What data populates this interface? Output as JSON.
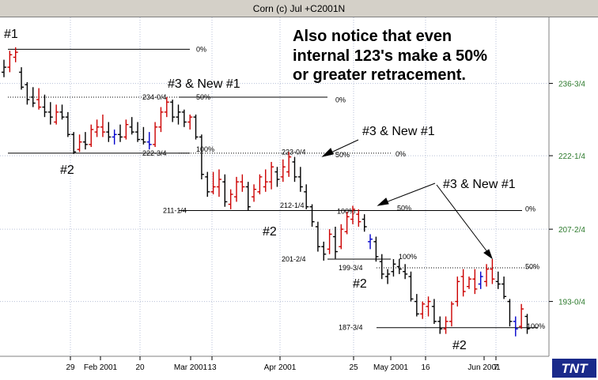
{
  "window": {
    "title": "Corn (c) Jul +C2001N"
  },
  "note": {
    "lines": [
      "Also notice that even",
      "internal 123's make a 50%",
      "or greater retracement."
    ]
  },
  "labels": {
    "p1": "#1",
    "p2a": "#2",
    "p2b": "#2",
    "p2c": "#2",
    "p2d": "#2",
    "p3a": "#3 & New #1",
    "p3b": "#3 & New #1",
    "p3c": "#3 & New #1"
  },
  "logo": "TNT",
  "chart_data": {
    "type": "bar",
    "subtype": "ohlc",
    "title": "Corn (c) Jul +C2001N",
    "x_tick_labels": [
      "29",
      "Feb 2001",
      "20",
      "Mar 2001",
      "13",
      "Apr 2001",
      "25",
      "May 2001",
      "16",
      "Jun 2001",
      "7"
    ],
    "y_tick_labels": [
      "236-3/4",
      "222-1/4",
      "207-2/4",
      "193-0/4"
    ],
    "ylim": [
      182.0,
      250.0
    ],
    "grid": true,
    "fib_levels": [
      {
        "text": "0%",
        "y": 243.6
      },
      {
        "text": "234-0/4",
        "y": 234.0
      },
      {
        "text": "50%",
        "y": 234.0
      },
      {
        "text": "0%",
        "y": 233.4
      },
      {
        "text": "222-3/4",
        "y": 222.75
      },
      {
        "text": "100%",
        "y": 223.5
      },
      {
        "text": "223-0/4",
        "y": 223.0
      },
      {
        "text": "50%",
        "y": 222.4
      },
      {
        "text": "0%",
        "y": 222.6
      },
      {
        "text": "211-1/4",
        "y": 211.25
      },
      {
        "text": "212-1/4",
        "y": 212.25
      },
      {
        "text": "100%",
        "y": 211.1
      },
      {
        "text": "50%",
        "y": 211.7
      },
      {
        "text": "0%",
        "y": 211.6
      },
      {
        "text": "201-2/4",
        "y": 201.5
      },
      {
        "text": "100%",
        "y": 202.0
      },
      {
        "text": "199-3/4",
        "y": 199.75
      },
      {
        "text": "50%",
        "y": 200.0
      },
      {
        "text": "187-3/4",
        "y": 187.75
      },
      {
        "text": "100%",
        "y": 188.0
      }
    ],
    "bars": [
      {
        "h": 241.5,
        "l": 238.0,
        "o": 239.0,
        "c": 240.0,
        "col": "black"
      },
      {
        "h": 243.3,
        "l": 239.0,
        "o": 240.0,
        "c": 242.5,
        "col": "red"
      },
      {
        "h": 244.0,
        "l": 241.0,
        "o": 242.0,
        "c": 243.0,
        "col": "red"
      },
      {
        "h": 240.0,
        "l": 235.5,
        "o": 239.0,
        "c": 236.0,
        "col": "black"
      },
      {
        "h": 237.0,
        "l": 232.5,
        "o": 236.5,
        "c": 233.5,
        "col": "black"
      },
      {
        "h": 236.0,
        "l": 232.0,
        "o": 234.0,
        "c": 232.8,
        "col": "black"
      },
      {
        "h": 235.8,
        "l": 231.5,
        "o": 233.5,
        "c": 232.0,
        "col": "red"
      },
      {
        "h": 234.5,
        "l": 230.0,
        "o": 232.0,
        "c": 231.0,
        "col": "black"
      },
      {
        "h": 233.0,
        "l": 228.5,
        "o": 231.0,
        "c": 230.0,
        "col": "black"
      },
      {
        "h": 232.5,
        "l": 228.5,
        "o": 229.0,
        "c": 231.0,
        "col": "red"
      },
      {
        "h": 232.5,
        "l": 229.5,
        "o": 231.0,
        "c": 230.0,
        "col": "black"
      },
      {
        "h": 231.0,
        "l": 226.0,
        "o": 230.0,
        "c": 226.5,
        "col": "black"
      },
      {
        "h": 227.0,
        "l": 222.6,
        "o": 226.5,
        "c": 223.0,
        "col": "black"
      },
      {
        "h": 226.5,
        "l": 223.0,
        "o": 223.5,
        "c": 225.0,
        "col": "red"
      },
      {
        "h": 227.0,
        "l": 223.5,
        "o": 225.0,
        "c": 224.5,
        "col": "black"
      },
      {
        "h": 228.5,
        "l": 224.0,
        "o": 224.5,
        "c": 227.5,
        "col": "red"
      },
      {
        "h": 229.5,
        "l": 226.0,
        "o": 227.0,
        "c": 228.0,
        "col": "red"
      },
      {
        "h": 230.5,
        "l": 226.0,
        "o": 228.0,
        "c": 227.0,
        "col": "red"
      },
      {
        "h": 229.0,
        "l": 225.0,
        "o": 227.0,
        "c": 226.0,
        "col": "black"
      },
      {
        "h": 227.5,
        "l": 224.5,
        "o": 226.0,
        "c": 226.5,
        "col": "blue"
      },
      {
        "h": 228.5,
        "l": 225.0,
        "o": 226.5,
        "c": 226.0,
        "col": "black"
      },
      {
        "h": 229.5,
        "l": 225.5,
        "o": 226.0,
        "c": 228.5,
        "col": "red"
      },
      {
        "h": 230.0,
        "l": 226.5,
        "o": 228.0,
        "c": 227.0,
        "col": "black"
      },
      {
        "h": 229.0,
        "l": 225.0,
        "o": 227.0,
        "c": 225.5,
        "col": "black"
      },
      {
        "h": 228.0,
        "l": 224.5,
        "o": 225.5,
        "c": 225.0,
        "col": "black"
      },
      {
        "h": 227.0,
        "l": 223.5,
        "o": 225.0,
        "c": 224.5,
        "col": "blue"
      },
      {
        "h": 229.0,
        "l": 224.0,
        "o": 224.5,
        "c": 228.0,
        "col": "red"
      },
      {
        "h": 232.0,
        "l": 227.0,
        "o": 228.0,
        "c": 231.0,
        "col": "red"
      },
      {
        "h": 234.0,
        "l": 230.0,
        "o": 231.0,
        "c": 233.0,
        "col": "red"
      },
      {
        "h": 233.5,
        "l": 229.0,
        "o": 233.0,
        "c": 230.0,
        "col": "black"
      },
      {
        "h": 232.5,
        "l": 228.5,
        "o": 230.0,
        "c": 231.0,
        "col": "black"
      },
      {
        "h": 231.5,
        "l": 228.0,
        "o": 231.0,
        "c": 229.0,
        "col": "black"
      },
      {
        "h": 230.5,
        "l": 227.5,
        "o": 229.0,
        "c": 230.0,
        "col": "red"
      },
      {
        "h": 230.5,
        "l": 225.5,
        "o": 230.0,
        "c": 226.0,
        "col": "black"
      },
      {
        "h": 226.5,
        "l": 217.5,
        "o": 226.0,
        "c": 218.5,
        "col": "black"
      },
      {
        "h": 219.0,
        "l": 214.0,
        "o": 218.0,
        "c": 215.0,
        "col": "black"
      },
      {
        "h": 219.0,
        "l": 214.5,
        "o": 215.0,
        "c": 216.0,
        "col": "red"
      },
      {
        "h": 219.5,
        "l": 214.0,
        "o": 216.0,
        "c": 217.5,
        "col": "red"
      },
      {
        "h": 218.5,
        "l": 212.0,
        "o": 217.0,
        "c": 213.0,
        "col": "black"
      },
      {
        "h": 215.5,
        "l": 211.5,
        "o": 212.5,
        "c": 214.5,
        "col": "red"
      },
      {
        "h": 218.0,
        "l": 213.0,
        "o": 214.0,
        "c": 217.0,
        "col": "red"
      },
      {
        "h": 218.5,
        "l": 215.0,
        "o": 217.0,
        "c": 216.0,
        "col": "red"
      },
      {
        "h": 217.0,
        "l": 211.2,
        "o": 216.0,
        "c": 212.0,
        "col": "black"
      },
      {
        "h": 216.5,
        "l": 213.0,
        "o": 214.0,
        "c": 215.5,
        "col": "red"
      },
      {
        "h": 218.5,
        "l": 214.5,
        "o": 215.0,
        "c": 218.0,
        "col": "red"
      },
      {
        "h": 219.5,
        "l": 215.0,
        "o": 216.0,
        "c": 217.0,
        "col": "red"
      },
      {
        "h": 221.0,
        "l": 215.5,
        "o": 217.0,
        "c": 220.0,
        "col": "red"
      },
      {
        "h": 220.0,
        "l": 216.0,
        "o": 219.0,
        "c": 217.5,
        "col": "black"
      },
      {
        "h": 221.5,
        "l": 217.0,
        "o": 218.0,
        "c": 220.0,
        "col": "red"
      },
      {
        "h": 223.0,
        "l": 218.0,
        "o": 219.0,
        "c": 222.0,
        "col": "red"
      },
      {
        "h": 222.0,
        "l": 217.0,
        "o": 221.0,
        "c": 218.0,
        "col": "black"
      },
      {
        "h": 220.0,
        "l": 215.0,
        "o": 218.0,
        "c": 216.0,
        "col": "black"
      },
      {
        "h": 216.5,
        "l": 211.5,
        "o": 215.0,
        "c": 212.0,
        "col": "black"
      },
      {
        "h": 212.5,
        "l": 208.0,
        "o": 212.0,
        "c": 209.0,
        "col": "black"
      },
      {
        "h": 209.0,
        "l": 203.0,
        "o": 208.0,
        "c": 204.0,
        "col": "black"
      },
      {
        "h": 205.0,
        "l": 201.2,
        "o": 204.0,
        "c": 202.5,
        "col": "black"
      },
      {
        "h": 207.5,
        "l": 202.5,
        "o": 203.5,
        "c": 206.5,
        "col": "red"
      },
      {
        "h": 208.0,
        "l": 201.6,
        "o": 206.0,
        "c": 203.0,
        "col": "black"
      },
      {
        "h": 208.5,
        "l": 203.5,
        "o": 204.0,
        "c": 207.5,
        "col": "red"
      },
      {
        "h": 211.0,
        "l": 206.5,
        "o": 207.0,
        "c": 210.0,
        "col": "red"
      },
      {
        "h": 212.2,
        "l": 208.5,
        "o": 209.5,
        "c": 211.5,
        "col": "red"
      },
      {
        "h": 211.5,
        "l": 208.0,
        "o": 210.5,
        "c": 209.0,
        "col": "red"
      },
      {
        "h": 210.5,
        "l": 207.0,
        "o": 209.5,
        "c": 208.0,
        "col": "black"
      },
      {
        "h": 206.5,
        "l": 203.5,
        "o": 205.0,
        "c": 205.5,
        "col": "blue"
      },
      {
        "h": 206.0,
        "l": 201.0,
        "o": 205.0,
        "c": 202.0,
        "col": "black"
      },
      {
        "h": 202.5,
        "l": 197.5,
        "o": 201.0,
        "c": 198.5,
        "col": "black"
      },
      {
        "h": 199.5,
        "l": 196.5,
        "o": 198.0,
        "c": 198.5,
        "col": "black"
      },
      {
        "h": 201.5,
        "l": 198.0,
        "o": 199.0,
        "c": 200.5,
        "col": "black"
      },
      {
        "h": 201.5,
        "l": 198.5,
        "o": 200.0,
        "c": 199.5,
        "col": "black"
      },
      {
        "h": 200.5,
        "l": 197.5,
        "o": 199.0,
        "c": 198.5,
        "col": "black"
      },
      {
        "h": 199.0,
        "l": 193.0,
        "o": 198.0,
        "c": 193.5,
        "col": "black"
      },
      {
        "h": 194.5,
        "l": 190.0,
        "o": 193.0,
        "c": 190.5,
        "col": "black"
      },
      {
        "h": 193.0,
        "l": 189.5,
        "o": 190.5,
        "c": 192.5,
        "col": "red"
      },
      {
        "h": 194.0,
        "l": 190.0,
        "o": 192.0,
        "c": 193.0,
        "col": "red"
      },
      {
        "h": 193.5,
        "l": 188.5,
        "o": 192.0,
        "c": 189.0,
        "col": "black"
      },
      {
        "h": 190.0,
        "l": 186.5,
        "o": 189.0,
        "c": 187.5,
        "col": "black"
      },
      {
        "h": 190.0,
        "l": 186.5,
        "o": 187.5,
        "c": 189.0,
        "col": "red"
      },
      {
        "h": 193.0,
        "l": 188.0,
        "o": 189.0,
        "c": 192.5,
        "col": "red"
      },
      {
        "h": 198.0,
        "l": 192.0,
        "o": 193.0,
        "c": 197.0,
        "col": "red"
      },
      {
        "h": 199.5,
        "l": 194.0,
        "o": 198.0,
        "c": 195.0,
        "col": "red"
      },
      {
        "h": 198.0,
        "l": 195.5,
        "o": 196.0,
        "c": 197.5,
        "col": "red"
      },
      {
        "h": 199.5,
        "l": 194.5,
        "o": 197.5,
        "c": 195.5,
        "col": "red"
      },
      {
        "h": 199.0,
        "l": 195.5,
        "o": 196.5,
        "c": 198.0,
        "col": "blue"
      },
      {
        "h": 200.5,
        "l": 196.0,
        "o": 197.0,
        "c": 199.5,
        "col": "red"
      },
      {
        "h": 201.5,
        "l": 196.5,
        "o": 199.5,
        "c": 197.5,
        "col": "red"
      },
      {
        "h": 199.0,
        "l": 195.5,
        "o": 197.0,
        "c": 196.5,
        "col": "black"
      },
      {
        "h": 198.0,
        "l": 193.5,
        "o": 196.5,
        "c": 194.0,
        "col": "black"
      },
      {
        "h": 193.5,
        "l": 188.0,
        "o": 193.0,
        "c": 189.0,
        "col": "black"
      },
      {
        "h": 190.0,
        "l": 186.0,
        "o": 189.0,
        "c": 187.5,
        "col": "blue"
      },
      {
        "h": 192.5,
        "l": 187.5,
        "o": 188.0,
        "c": 191.5,
        "col": "red"
      },
      {
        "h": 190.5,
        "l": 186.5,
        "o": 190.0,
        "c": 187.5,
        "col": "black"
      }
    ]
  }
}
